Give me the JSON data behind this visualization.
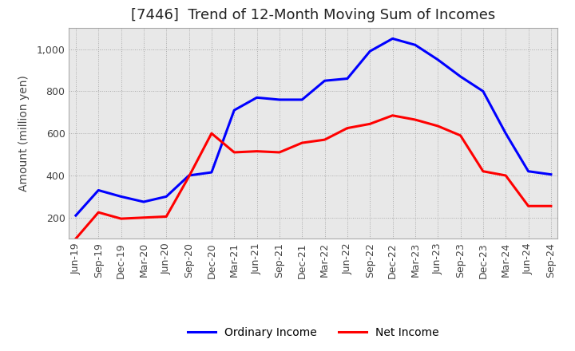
{
  "title": "[7446]  Trend of 12-Month Moving Sum of Incomes",
  "ylabel": "Amount (million yen)",
  "x_labels": [
    "Jun-19",
    "Sep-19",
    "Dec-19",
    "Mar-20",
    "Jun-20",
    "Sep-20",
    "Dec-20",
    "Mar-21",
    "Jun-21",
    "Sep-21",
    "Dec-21",
    "Mar-22",
    "Jun-22",
    "Sep-22",
    "Dec-22",
    "Mar-23",
    "Jun-23",
    "Sep-23",
    "Dec-23",
    "Mar-24",
    "Jun-24",
    "Sep-24"
  ],
  "ordinary_income": [
    210,
    330,
    300,
    275,
    300,
    400,
    415,
    710,
    770,
    760,
    760,
    850,
    860,
    990,
    1050,
    1020,
    950,
    870,
    800,
    600,
    420,
    405
  ],
  "net_income": [
    100,
    225,
    195,
    200,
    205,
    395,
    600,
    510,
    515,
    510,
    555,
    570,
    625,
    645,
    685,
    665,
    635,
    590,
    420,
    400,
    255,
    255
  ],
  "ordinary_color": "#0000FF",
  "net_color": "#FF0000",
  "ylim": [
    100,
    1100
  ],
  "yticks": [
    200,
    400,
    600,
    800,
    1000
  ],
  "ytick_labels": [
    "200",
    "400",
    "600",
    "800",
    "1,000"
  ],
  "plot_bg_color": "#E8E8E8",
  "fig_bg_color": "#FFFFFF",
  "grid_color": "#AAAAAA",
  "title_fontsize": 13,
  "axis_label_fontsize": 10,
  "tick_fontsize": 9,
  "legend_fontsize": 10,
  "line_width": 2.2
}
